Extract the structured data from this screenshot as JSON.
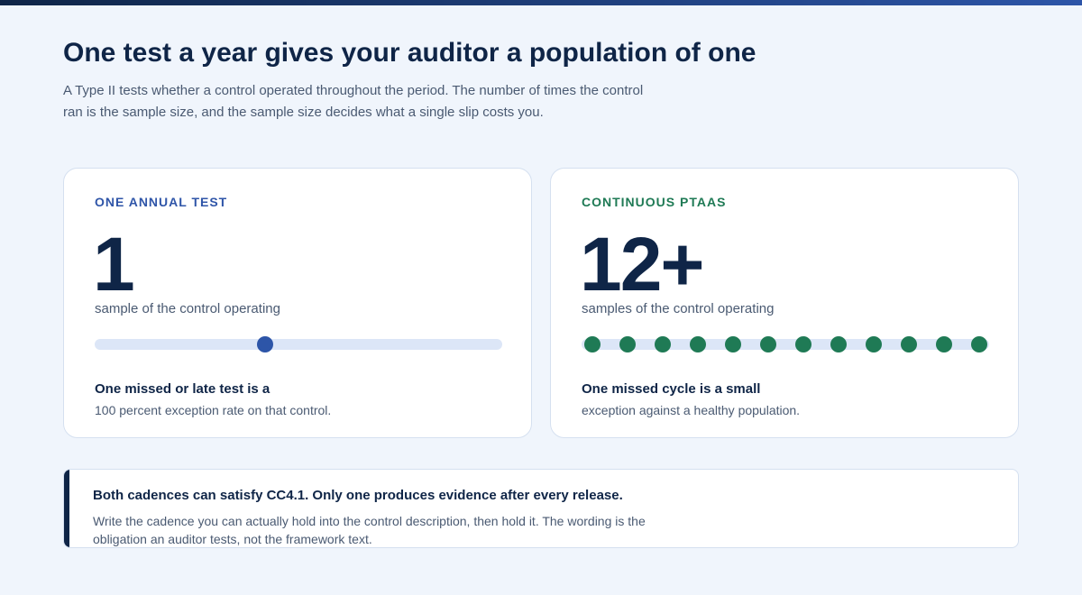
{
  "header": {
    "title": "One test a year gives your auditor a population of one",
    "subtitle": "A Type II tests whether a control operated throughout the period. The number of times the control ran is the sample size, and the sample size decides what a single slip costs you."
  },
  "cards": [
    {
      "label": "ONE ANNUAL TEST",
      "number": "1",
      "caption": "sample of the control operating",
      "note_bold": "One missed or late test is a",
      "note": "100 percent exception rate on that control."
    },
    {
      "label": "CONTINUOUS PTAAS",
      "number": "12+",
      "caption": "samples of the control operating",
      "note_bold": "One missed cycle is a small",
      "note": "exception against a healthy population."
    }
  ],
  "callout": {
    "title": "Both cadences can satisfy CC4.1. Only one produces evidence after every release.",
    "body": "Write the cadence you can actually hold into the control description, then hold it. The wording is the obligation an auditor tests, not the framework text."
  }
}
